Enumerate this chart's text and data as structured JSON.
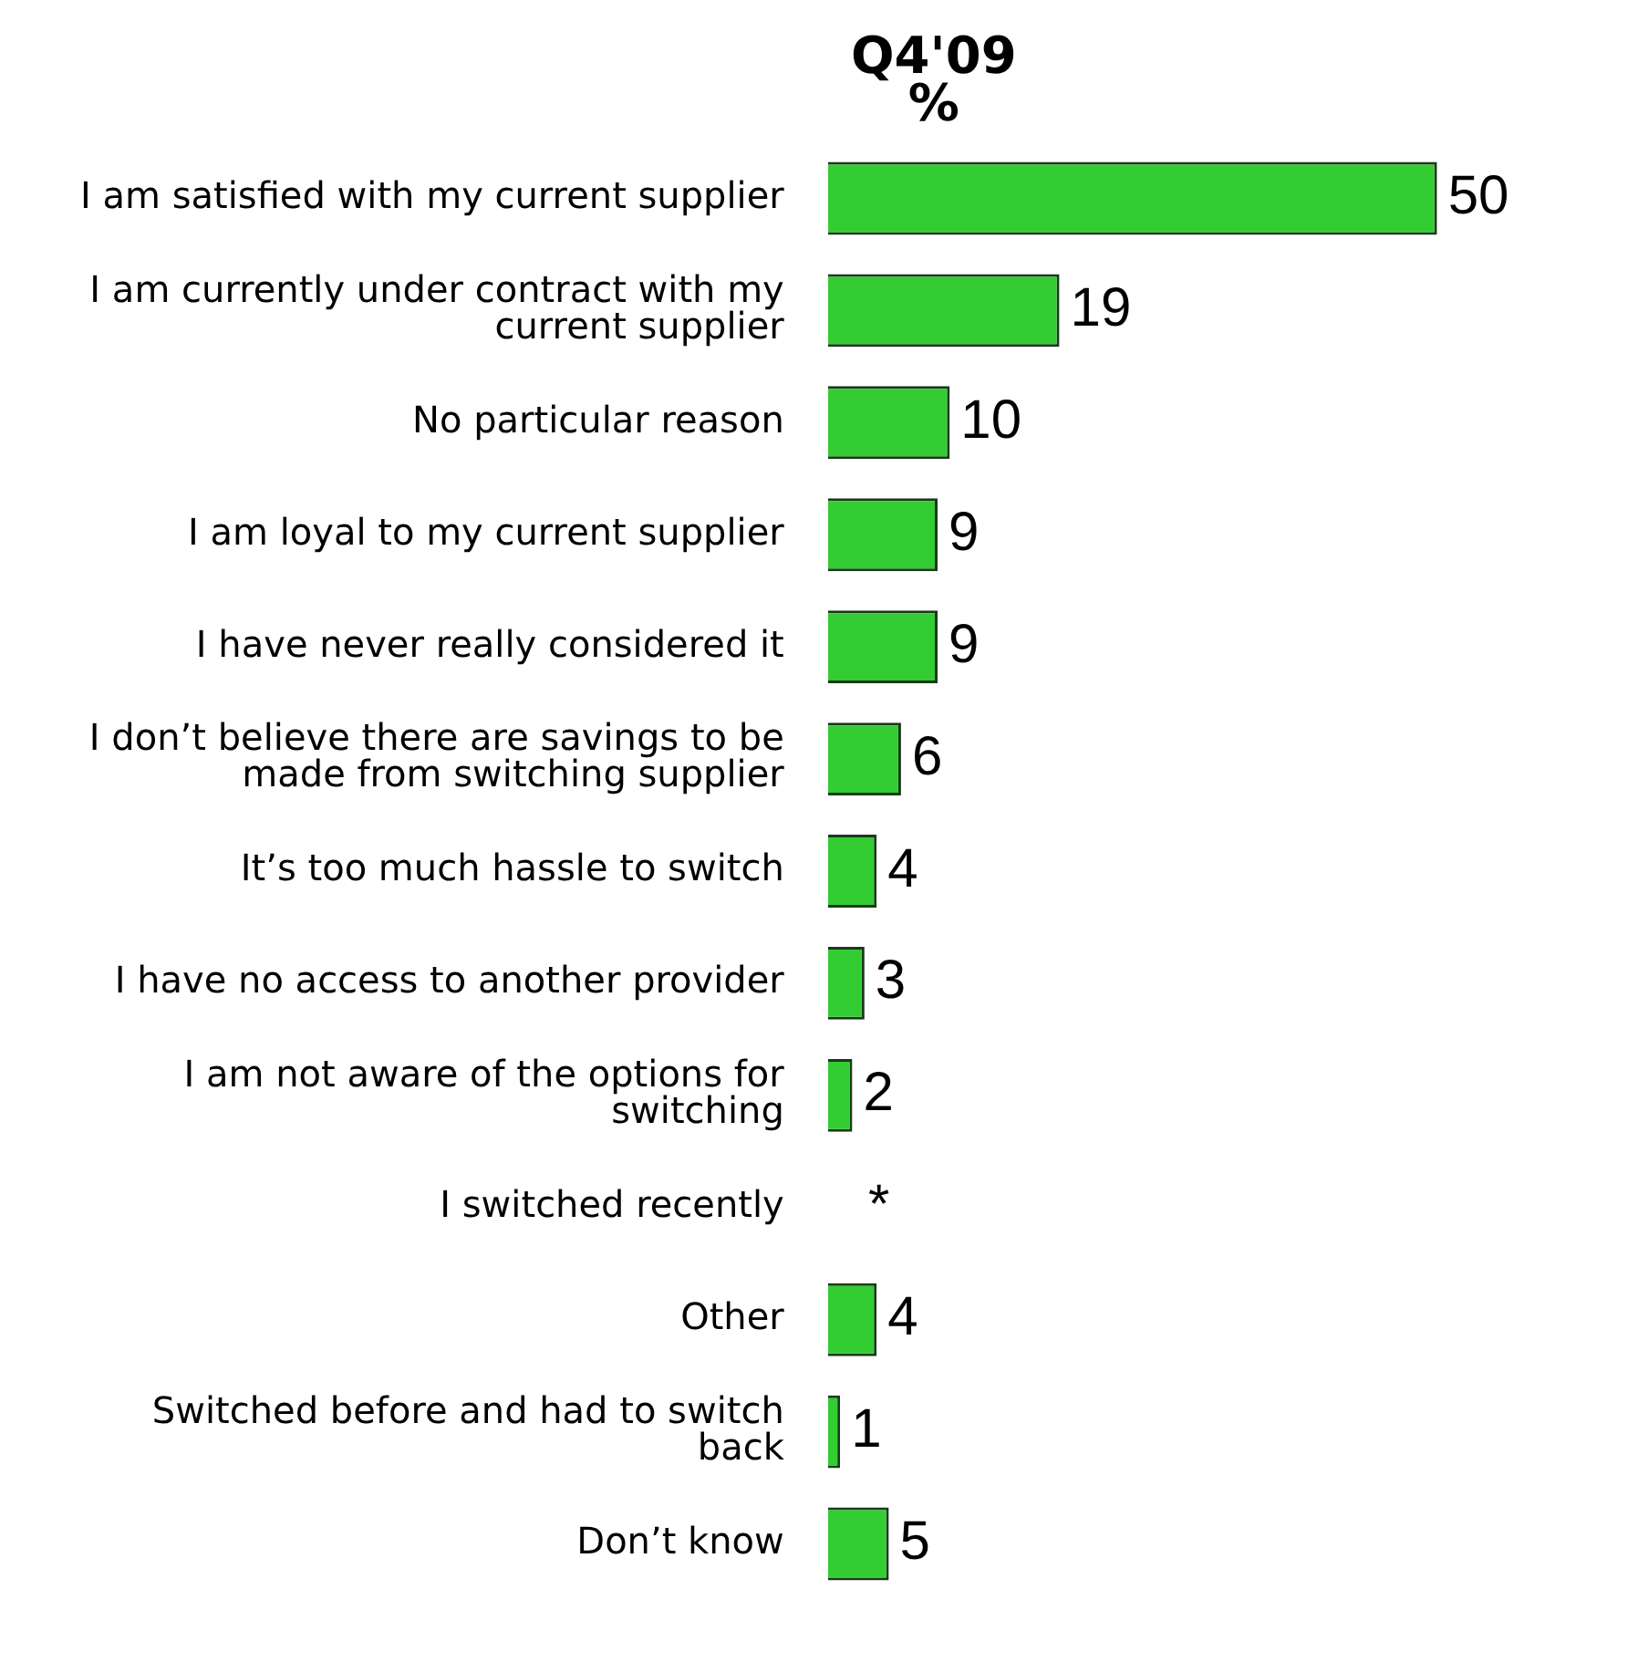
{
  "chart_data": {
    "type": "bar",
    "orientation": "horizontal",
    "title": "Q4'09",
    "subtitle": "%",
    "categories": [
      "I am satisfied with my current supplier",
      "I am currently under contract with my current supplier",
      "No particular reason",
      "I am loyal to my current supplier",
      "I have never really considered it",
      "I don’t believe there are savings to be made from switching supplier",
      "It’s too much hassle to switch",
      "I have no access to another provider",
      "I am not aware of the options for switching",
      "I switched recently",
      "Other",
      "Switched before and had to switch back",
      "Don’t know"
    ],
    "values": [
      50,
      19,
      10,
      9,
      9,
      6,
      4,
      3,
      2,
      null,
      4,
      1,
      5
    ],
    "value_labels": [
      "50",
      "19",
      "10",
      "9",
      "9",
      "6",
      "4",
      "3",
      "2",
      "*",
      "4",
      "1",
      "5"
    ],
    "color": "#33cc33",
    "tick_labels": "y"
  }
}
